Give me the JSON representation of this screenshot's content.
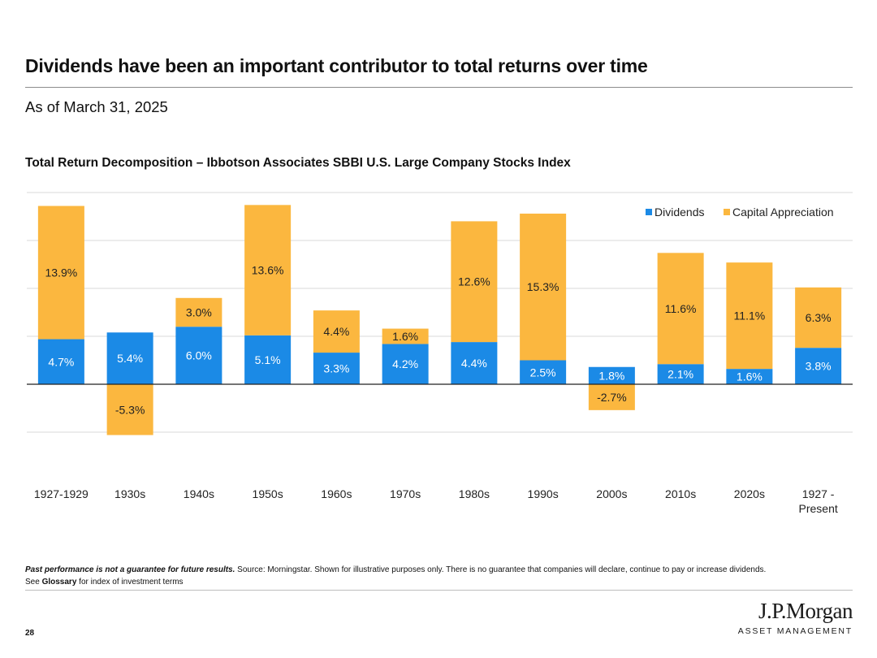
{
  "header": {
    "title": "Dividends have been an important contributor to total returns over time",
    "as_of": "As of March 31, 2025"
  },
  "chart_data": {
    "type": "bar",
    "stacked": true,
    "title": "Total Return Decomposition – Ibbotson Associates SBBI U.S. Large Company Stocks Index",
    "categories": [
      "1927-1929",
      "1930s",
      "1940s",
      "1950s",
      "1960s",
      "1970s",
      "1980s",
      "1990s",
      "2000s",
      "2010s",
      "2020s",
      "1927 - Present"
    ],
    "series": [
      {
        "name": "Dividends",
        "color": "#1b8ae6",
        "values": [
          4.7,
          5.4,
          6.0,
          5.1,
          3.3,
          4.2,
          4.4,
          2.5,
          1.8,
          2.1,
          1.6,
          3.8
        ],
        "labels": [
          "4.7%",
          "5.4%",
          "6.0%",
          "5.1%",
          "3.3%",
          "4.2%",
          "4.4%",
          "2.5%",
          "1.8%",
          "2.1%",
          "1.6%",
          "3.8%"
        ]
      },
      {
        "name": "Capital Appreciation",
        "color": "#fbb73f",
        "values": [
          13.9,
          -5.3,
          3.0,
          13.6,
          4.4,
          1.6,
          12.6,
          15.3,
          -2.7,
          11.6,
          11.1,
          6.3
        ],
        "labels": [
          "13.9%",
          "-5.3%",
          "3.0%",
          "13.6%",
          "4.4%",
          "1.6%",
          "12.6%",
          "15.3%",
          "-2.7%",
          "11.6%",
          "11.1%",
          "6.3%"
        ]
      }
    ],
    "ylim": [
      -10,
      20
    ],
    "gridlines": [
      -5,
      0,
      5,
      10,
      15,
      20
    ],
    "legend": "top-right",
    "xlabel": "",
    "ylabel": ""
  },
  "footer": {
    "disclaimer_bold": "Past performance is not a guarantee for future results.",
    "disclaimer_text": " Source: Morningstar. Shown for illustrative purposes only. There is no guarantee that companies will declare, continue to pay or increase dividends.",
    "glossary_prefix": "See ",
    "glossary_link": "Glossary",
    "glossary_suffix": " for index of investment terms",
    "page_number": "28",
    "logo_name": "J.P.Morgan",
    "logo_sub": "ASSET MANAGEMENT"
  }
}
